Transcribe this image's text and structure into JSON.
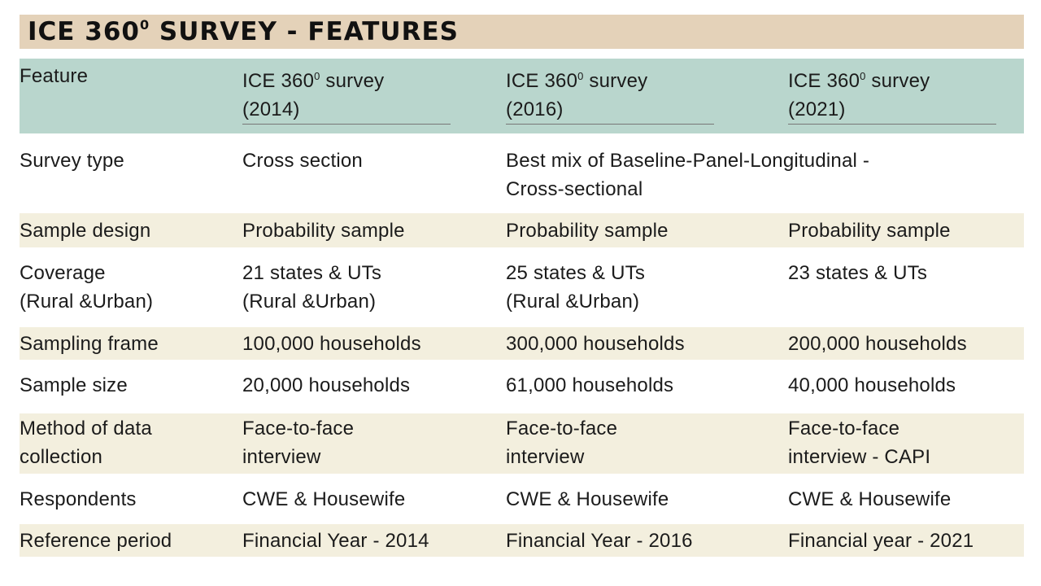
{
  "title": {
    "main": "ICE 360",
    "sup": "0",
    "rest": " SURVEY - FEATURES"
  },
  "header": [
    {
      "text": "Feature"
    },
    {
      "pre": "ICE 360",
      "sup": "0",
      "post": " survey\n(2014)"
    },
    {
      "pre": "ICE 360",
      "sup": "0",
      "post": " survey\n(2016)"
    },
    {
      "pre": "ICE 360",
      "sup": "0",
      "post": " survey\n(2021)"
    }
  ],
  "rows": [
    {
      "feature": "Survey type",
      "c2014": "Cross section",
      "c2016": "Best mix of Baseline-Panel-Longitudinal -\nCross-sectional",
      "c2021": ""
    },
    {
      "feature": "Sample design",
      "c2014": "Probability sample",
      "c2016": "Probability sample",
      "c2021": "Probability sample"
    },
    {
      "feature": "Coverage\n(Rural &Urban)",
      "c2014": "21 states & UTs\n(Rural &Urban)",
      "c2016": "25 states & UTs\n(Rural &Urban)",
      "c2021": "23 states & UTs"
    },
    {
      "feature": "Sampling frame",
      "c2014": "100,000 households",
      "c2016": "300,000 households",
      "c2021": "200,000 households"
    },
    {
      "feature": "Sample size",
      "c2014": "20,000 households",
      "c2016": "61,000 households",
      "c2021": "40,000 households"
    },
    {
      "feature": "Method of data\ncollection",
      "c2014": "Face-to-face\ninterview",
      "c2016": "Face-to-face\ninterview",
      "c2021": "Face-to-face\ninterview - CAPI"
    },
    {
      "feature": "Respondents",
      "c2014": "CWE & Housewife",
      "c2016": "CWE & Housewife",
      "c2021": "CWE & Housewife"
    },
    {
      "feature": "Reference period",
      "c2014": "Financial Year - 2014",
      "c2016": "Financial Year - 2016",
      "c2021": "Financial year - 2021"
    }
  ],
  "colors": {
    "title_bg": "#e4d2b9",
    "header_bg": "#b9d6cd",
    "shade_bg": "#f3efde"
  }
}
